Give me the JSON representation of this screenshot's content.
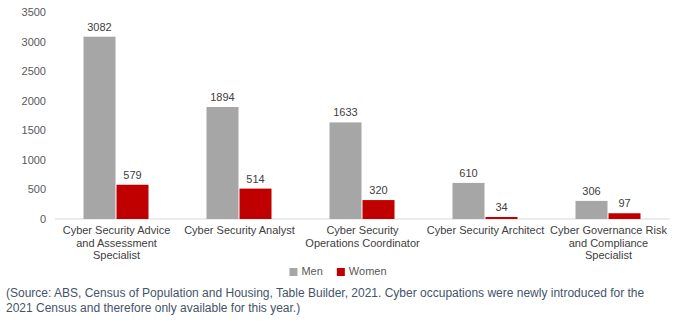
{
  "chart_data": {
    "type": "bar",
    "categories": [
      "Cyber Security Advice and Assessment Specialist",
      "Cyber Security Analyst",
      "Cyber Security Operations Coordinator",
      "Cyber Security Architect",
      "Cyber Governance Risk and Compliance Specialist"
    ],
    "series": [
      {
        "name": "Men",
        "color": "#a6a6a6",
        "values": [
          3082,
          1894,
          1633,
          610,
          306
        ]
      },
      {
        "name": "Women",
        "color": "#c00000",
        "values": [
          579,
          514,
          320,
          34,
          97
        ]
      }
    ],
    "ylim": [
      0,
      3500
    ],
    "yticks": [
      0,
      500,
      1000,
      1500,
      2000,
      2500,
      3000,
      3500
    ],
    "grid": false,
    "legend": "bottom",
    "data_labels": true,
    "annotations": [
      "(Source: ABS, Census of Population and Housing, Table Builder, 2021. Cyber occupations were newly introduced for the 2021 Census and therefore only available for this year.)"
    ]
  }
}
